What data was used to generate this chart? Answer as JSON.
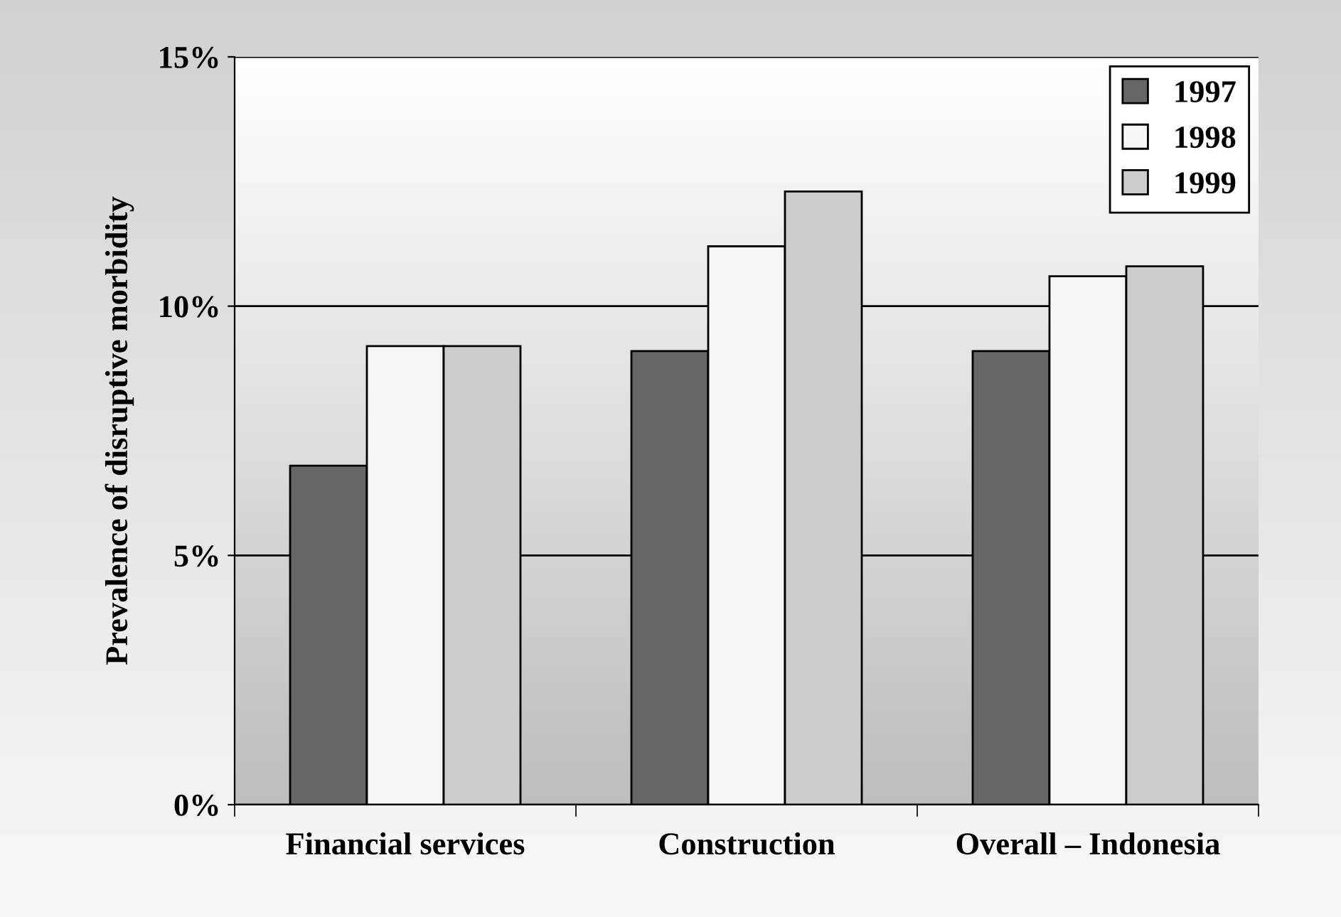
{
  "chart_data": {
    "type": "bar",
    "ylabel": "Prevalence of disruptive morbidity",
    "categories": [
      "Financial services",
      "Construction",
      "Overall – Indonesia"
    ],
    "series": [
      {
        "name": "1997",
        "color": "#666666",
        "values": [
          6.8,
          9.1,
          9.1
        ]
      },
      {
        "name": "1998",
        "color": "#f7f7f7",
        "values": [
          9.2,
          11.2,
          10.6
        ]
      },
      {
        "name": "1999",
        "color": "#cccccc",
        "values": [
          9.2,
          12.3,
          10.8
        ]
      }
    ],
    "ylim": [
      0,
      15
    ],
    "yticks": [
      {
        "value": 0,
        "label": "0%"
      },
      {
        "value": 5,
        "label": "5%"
      },
      {
        "value": 10,
        "label": "10%"
      },
      {
        "value": 15,
        "label": "15%"
      }
    ],
    "grid": "y",
    "legend": "top right"
  }
}
